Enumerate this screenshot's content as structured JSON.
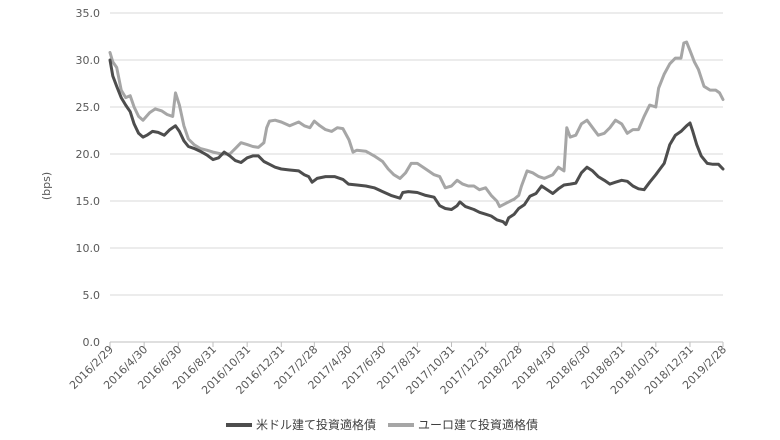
{
  "chart_data": {
    "type": "line",
    "ylabel": "(bps)",
    "ylim": [
      0,
      35
    ],
    "yticks": [
      "0.0",
      "5.0",
      "10.0",
      "15.0",
      "20.0",
      "25.0",
      "30.0",
      "35.0"
    ],
    "yticks_values": [
      0,
      5,
      10,
      15,
      20,
      25,
      30,
      35
    ],
    "grid": true,
    "legend_position": "bottom",
    "xlim": [
      "2016-02-29",
      "2019-02-28"
    ],
    "xtick_labels": [
      "2016/2/29",
      "2016/4/30",
      "2016/6/30",
      "2016/8/31",
      "2016/10/31",
      "2016/12/31",
      "2017/2/28",
      "2017/4/30",
      "2017/6/30",
      "2017/8/31",
      "2017/10/31",
      "2017/12/31",
      "2018/2/28",
      "2018/4/30",
      "2018/6/30",
      "2018/8/31",
      "2018/10/31",
      "2018/12/31",
      "2019/2/28"
    ],
    "xtick_dates": [
      "2016-02-29",
      "2016-04-30",
      "2016-06-30",
      "2016-08-31",
      "2016-10-31",
      "2016-12-31",
      "2017-02-28",
      "2017-04-30",
      "2017-06-30",
      "2017-08-31",
      "2017-10-31",
      "2017-12-31",
      "2018-02-28",
      "2018-04-30",
      "2018-06-30",
      "2018-08-31",
      "2018-10-31",
      "2018-12-31",
      "2019-02-28"
    ],
    "series": [
      {
        "name": "米ドル建て投資適格債",
        "color": "#4d4d4d",
        "points": [
          [
            "2016-02-29",
            30.0
          ],
          [
            "2016-03-05",
            28.3
          ],
          [
            "2016-03-12",
            27.2
          ],
          [
            "2016-03-20",
            26.0
          ],
          [
            "2016-03-28",
            25.2
          ],
          [
            "2016-04-05",
            24.5
          ],
          [
            "2016-04-12",
            23.2
          ],
          [
            "2016-04-20",
            22.2
          ],
          [
            "2016-04-28",
            21.8
          ],
          [
            "2016-05-05",
            22.0
          ],
          [
            "2016-05-15",
            22.4
          ],
          [
            "2016-05-25",
            22.3
          ],
          [
            "2016-06-05",
            22.0
          ],
          [
            "2016-06-15",
            22.6
          ],
          [
            "2016-06-25",
            23.0
          ],
          [
            "2016-07-02",
            22.4
          ],
          [
            "2016-07-10",
            21.4
          ],
          [
            "2016-07-18",
            20.8
          ],
          [
            "2016-07-28",
            20.6
          ],
          [
            "2016-08-08",
            20.3
          ],
          [
            "2016-08-20",
            19.9
          ],
          [
            "2016-08-31",
            19.4
          ],
          [
            "2016-09-10",
            19.6
          ],
          [
            "2016-09-20",
            20.2
          ],
          [
            "2016-09-30",
            19.8
          ],
          [
            "2016-10-10",
            19.3
          ],
          [
            "2016-10-20",
            19.1
          ],
          [
            "2016-10-31",
            19.6
          ],
          [
            "2016-11-10",
            19.8
          ],
          [
            "2016-11-20",
            19.8
          ],
          [
            "2016-11-30",
            19.2
          ],
          [
            "2016-12-10",
            18.9
          ],
          [
            "2016-12-20",
            18.6
          ],
          [
            "2016-12-31",
            18.4
          ],
          [
            "2017-01-15",
            18.3
          ],
          [
            "2017-01-31",
            18.2
          ],
          [
            "2017-02-10",
            17.8
          ],
          [
            "2017-02-18",
            17.6
          ],
          [
            "2017-02-24",
            17.0
          ],
          [
            "2017-03-05",
            17.4
          ],
          [
            "2017-03-20",
            17.6
          ],
          [
            "2017-04-05",
            17.6
          ],
          [
            "2017-04-20",
            17.3
          ],
          [
            "2017-04-30",
            16.8
          ],
          [
            "2017-05-15",
            16.7
          ],
          [
            "2017-05-31",
            16.6
          ],
          [
            "2017-06-15",
            16.4
          ],
          [
            "2017-06-30",
            16.0
          ],
          [
            "2017-07-15",
            15.6
          ],
          [
            "2017-07-31",
            15.3
          ],
          [
            "2017-08-05",
            15.9
          ],
          [
            "2017-08-15",
            16.0
          ],
          [
            "2017-08-31",
            15.9
          ],
          [
            "2017-09-15",
            15.6
          ],
          [
            "2017-09-30",
            15.4
          ],
          [
            "2017-10-10",
            14.5
          ],
          [
            "2017-10-20",
            14.2
          ],
          [
            "2017-10-31",
            14.1
          ],
          [
            "2017-11-10",
            14.5
          ],
          [
            "2017-11-15",
            14.9
          ],
          [
            "2017-11-25",
            14.4
          ],
          [
            "2017-12-10",
            14.1
          ],
          [
            "2017-12-20",
            13.8
          ],
          [
            "2017-12-31",
            13.6
          ],
          [
            "2018-01-10",
            13.4
          ],
          [
            "2018-01-20",
            13.0
          ],
          [
            "2018-01-31",
            12.8
          ],
          [
            "2018-02-05",
            12.5
          ],
          [
            "2018-02-10",
            13.2
          ],
          [
            "2018-02-20",
            13.6
          ],
          [
            "2018-02-28",
            14.2
          ],
          [
            "2018-03-10",
            14.6
          ],
          [
            "2018-03-20",
            15.5
          ],
          [
            "2018-03-31",
            15.8
          ],
          [
            "2018-04-10",
            16.6
          ],
          [
            "2018-04-20",
            16.2
          ],
          [
            "2018-04-30",
            15.8
          ],
          [
            "2018-05-10",
            16.3
          ],
          [
            "2018-05-20",
            16.7
          ],
          [
            "2018-05-31",
            16.8
          ],
          [
            "2018-06-10",
            16.9
          ],
          [
            "2018-06-20",
            18.0
          ],
          [
            "2018-06-30",
            18.6
          ],
          [
            "2018-07-10",
            18.2
          ],
          [
            "2018-07-20",
            17.6
          ],
          [
            "2018-07-31",
            17.2
          ],
          [
            "2018-08-10",
            16.8
          ],
          [
            "2018-08-20",
            17.0
          ],
          [
            "2018-08-31",
            17.2
          ],
          [
            "2018-09-10",
            17.1
          ],
          [
            "2018-09-20",
            16.6
          ],
          [
            "2018-09-30",
            16.3
          ],
          [
            "2018-10-10",
            16.2
          ],
          [
            "2018-10-20",
            17.0
          ],
          [
            "2018-10-31",
            17.8
          ],
          [
            "2018-11-05",
            18.2
          ],
          [
            "2018-11-15",
            19.0
          ],
          [
            "2018-11-25",
            21.0
          ],
          [
            "2018-12-05",
            22.0
          ],
          [
            "2018-12-15",
            22.4
          ],
          [
            "2018-12-25",
            23.0
          ],
          [
            "2018-12-31",
            23.3
          ],
          [
            "2019-01-05",
            22.4
          ],
          [
            "2019-01-12",
            21.0
          ],
          [
            "2019-01-20",
            19.8
          ],
          [
            "2019-01-31",
            19.0
          ],
          [
            "2019-02-10",
            18.9
          ],
          [
            "2019-02-20",
            18.9
          ],
          [
            "2019-02-28",
            18.4
          ]
        ]
      },
      {
        "name": "ユーロ建て投資適格債",
        "color": "#a6a6a6",
        "points": [
          [
            "2016-02-29",
            30.8
          ],
          [
            "2016-03-05",
            29.8
          ],
          [
            "2016-03-12",
            29.2
          ],
          [
            "2016-03-20",
            26.8
          ],
          [
            "2016-03-28",
            26.0
          ],
          [
            "2016-04-05",
            26.2
          ],
          [
            "2016-04-12",
            25.0
          ],
          [
            "2016-04-20",
            24.0
          ],
          [
            "2016-04-28",
            23.6
          ],
          [
            "2016-05-10",
            24.4
          ],
          [
            "2016-05-20",
            24.8
          ],
          [
            "2016-05-31",
            24.6
          ],
          [
            "2016-06-10",
            24.2
          ],
          [
            "2016-06-20",
            24.0
          ],
          [
            "2016-06-25",
            26.5
          ],
          [
            "2016-07-02",
            25.2
          ],
          [
            "2016-07-10",
            23.0
          ],
          [
            "2016-07-18",
            21.6
          ],
          [
            "2016-07-28",
            21.0
          ],
          [
            "2016-08-08",
            20.6
          ],
          [
            "2016-08-20",
            20.4
          ],
          [
            "2016-08-31",
            20.2
          ],
          [
            "2016-09-15",
            20.0
          ],
          [
            "2016-09-30",
            20.0
          ],
          [
            "2016-10-10",
            20.6
          ],
          [
            "2016-10-20",
            21.2
          ],
          [
            "2016-10-31",
            21.0
          ],
          [
            "2016-11-10",
            20.8
          ],
          [
            "2016-11-20",
            20.7
          ],
          [
            "2016-11-30",
            21.2
          ],
          [
            "2016-12-05",
            22.8
          ],
          [
            "2016-12-10",
            23.5
          ],
          [
            "2016-12-20",
            23.6
          ],
          [
            "2016-12-31",
            23.4
          ],
          [
            "2017-01-15",
            23.0
          ],
          [
            "2017-01-31",
            23.4
          ],
          [
            "2017-02-10",
            23.0
          ],
          [
            "2017-02-20",
            22.8
          ],
          [
            "2017-02-28",
            23.5
          ],
          [
            "2017-03-10",
            23.0
          ],
          [
            "2017-03-20",
            22.6
          ],
          [
            "2017-03-31",
            22.4
          ],
          [
            "2017-04-10",
            22.8
          ],
          [
            "2017-04-20",
            22.7
          ],
          [
            "2017-05-01",
            21.5
          ],
          [
            "2017-05-08",
            20.2
          ],
          [
            "2017-05-15",
            20.4
          ],
          [
            "2017-05-31",
            20.3
          ],
          [
            "2017-06-15",
            19.8
          ],
          [
            "2017-06-30",
            19.2
          ],
          [
            "2017-07-10",
            18.4
          ],
          [
            "2017-07-20",
            17.8
          ],
          [
            "2017-07-31",
            17.4
          ],
          [
            "2017-08-10",
            18.0
          ],
          [
            "2017-08-20",
            19.0
          ],
          [
            "2017-08-31",
            19.0
          ],
          [
            "2017-09-15",
            18.4
          ],
          [
            "2017-09-30",
            17.8
          ],
          [
            "2017-10-10",
            17.6
          ],
          [
            "2017-10-20",
            16.4
          ],
          [
            "2017-10-31",
            16.6
          ],
          [
            "2017-11-10",
            17.2
          ],
          [
            "2017-11-20",
            16.8
          ],
          [
            "2017-11-30",
            16.6
          ],
          [
            "2017-12-10",
            16.6
          ],
          [
            "2017-12-20",
            16.2
          ],
          [
            "2017-12-31",
            16.4
          ],
          [
            "2018-01-10",
            15.6
          ],
          [
            "2018-01-20",
            15.0
          ],
          [
            "2018-01-25",
            14.4
          ],
          [
            "2018-01-31",
            14.6
          ],
          [
            "2018-02-10",
            14.9
          ],
          [
            "2018-02-20",
            15.2
          ],
          [
            "2018-02-28",
            15.6
          ],
          [
            "2018-03-05",
            16.6
          ],
          [
            "2018-03-15",
            18.2
          ],
          [
            "2018-03-25",
            18.0
          ],
          [
            "2018-04-05",
            17.6
          ],
          [
            "2018-04-15",
            17.4
          ],
          [
            "2018-04-30",
            17.8
          ],
          [
            "2018-05-10",
            18.6
          ],
          [
            "2018-05-20",
            18.2
          ],
          [
            "2018-05-25",
            22.8
          ],
          [
            "2018-05-31",
            21.8
          ],
          [
            "2018-06-10",
            22.0
          ],
          [
            "2018-06-20",
            23.2
          ],
          [
            "2018-06-30",
            23.6
          ],
          [
            "2018-07-10",
            22.8
          ],
          [
            "2018-07-20",
            22.0
          ],
          [
            "2018-07-31",
            22.2
          ],
          [
            "2018-08-10",
            22.8
          ],
          [
            "2018-08-20",
            23.6
          ],
          [
            "2018-08-31",
            23.2
          ],
          [
            "2018-09-10",
            22.2
          ],
          [
            "2018-09-20",
            22.6
          ],
          [
            "2018-09-30",
            22.6
          ],
          [
            "2018-10-10",
            24.0
          ],
          [
            "2018-10-20",
            25.2
          ],
          [
            "2018-10-31",
            25.0
          ],
          [
            "2018-11-05",
            27.0
          ],
          [
            "2018-11-15",
            28.5
          ],
          [
            "2018-11-25",
            29.6
          ],
          [
            "2018-12-05",
            30.2
          ],
          [
            "2018-12-15",
            30.2
          ],
          [
            "2018-12-20",
            31.8
          ],
          [
            "2018-12-25",
            31.9
          ],
          [
            "2018-12-31",
            31.0
          ],
          [
            "2019-01-08",
            29.8
          ],
          [
            "2019-01-15",
            29.0
          ],
          [
            "2019-01-25",
            27.2
          ],
          [
            "2019-02-05",
            26.8
          ],
          [
            "2019-02-15",
            26.8
          ],
          [
            "2019-02-22",
            26.5
          ],
          [
            "2019-02-28",
            25.8
          ]
        ]
      }
    ]
  }
}
